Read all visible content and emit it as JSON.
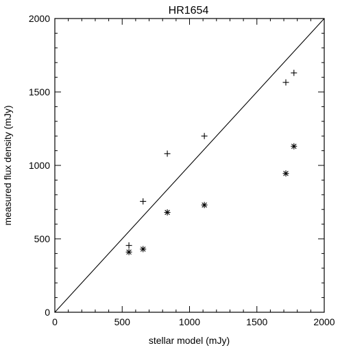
{
  "chart_data": {
    "type": "scatter",
    "title": "HR1654",
    "xlabel": "stellar model (mJy)",
    "ylabel": "measured flux density (mJy)",
    "xlim": [
      0,
      2000
    ],
    "ylim": [
      0,
      2000
    ],
    "xticks": [
      0,
      500,
      1000,
      1500,
      2000
    ],
    "yticks": [
      0,
      500,
      1000,
      1500,
      2000
    ],
    "x_minor_step": 100,
    "y_minor_step": 100,
    "grid": false,
    "series": [
      {
        "marker": "plus",
        "points": [
          {
            "x": 550,
            "y": 455
          },
          {
            "x": 655,
            "y": 755
          },
          {
            "x": 835,
            "y": 1080
          },
          {
            "x": 1110,
            "y": 1200
          },
          {
            "x": 1715,
            "y": 1565
          },
          {
            "x": 1775,
            "y": 1630
          }
        ]
      },
      {
        "marker": "asterisk",
        "points": [
          {
            "x": 550,
            "y": 410
          },
          {
            "x": 655,
            "y": 430
          },
          {
            "x": 835,
            "y": 680
          },
          {
            "x": 1110,
            "y": 730
          },
          {
            "x": 1715,
            "y": 945
          },
          {
            "x": 1775,
            "y": 1130
          }
        ]
      }
    ],
    "reference_line": {
      "from": [
        0,
        0
      ],
      "to": [
        2000,
        2000
      ]
    }
  }
}
